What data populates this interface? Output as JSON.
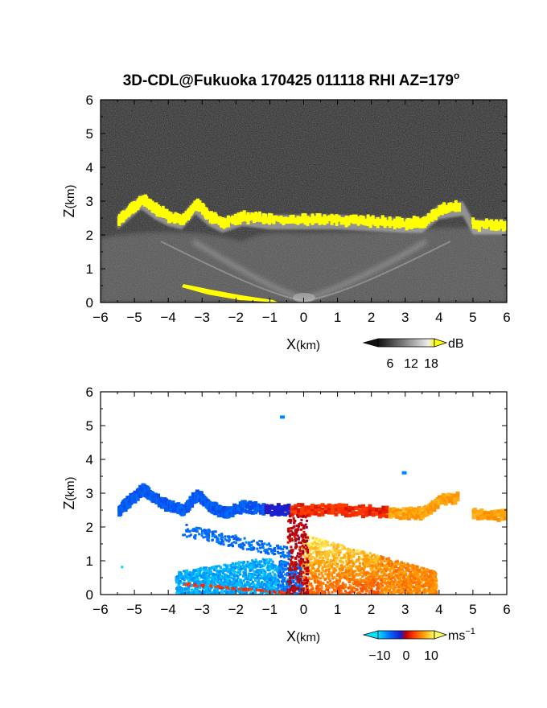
{
  "figure": {
    "title": "3D-CDL@Fukuoka 170425 011118 RHI AZ=179",
    "title_sup": "o"
  },
  "chart_data": [
    {
      "type": "heatmap",
      "name": "backscatter",
      "xlabel_main": "X",
      "xlabel_unit": "(km)",
      "ylabel_main": "Z",
      "ylabel_unit": "(km)",
      "xlim": [
        -6,
        6
      ],
      "ylim": [
        0,
        6
      ],
      "xticks": [
        "−6",
        "−5",
        "−4",
        "−3",
        "−2",
        "−1",
        "0",
        "1",
        "2",
        "3",
        "4",
        "5",
        "6"
      ],
      "yticks": [
        "0",
        "1",
        "2",
        "3",
        "4",
        "5",
        "6"
      ],
      "colorbar": {
        "unit": "dB",
        "ticks": [
          "6",
          "12",
          "18"
        ],
        "range": [
          0,
          20
        ]
      },
      "features": {
        "cloud_base_layer": [
          [
            -5.5,
            2.45
          ],
          [
            -5.2,
            2.7
          ],
          [
            -4.8,
            3.05
          ],
          [
            -4.4,
            2.75
          ],
          [
            -4.0,
            2.55
          ],
          [
            -3.6,
            2.45
          ],
          [
            -3.2,
            2.9
          ],
          [
            -2.8,
            2.55
          ],
          [
            -2.4,
            2.35
          ],
          [
            -1.8,
            2.55
          ],
          [
            -1.0,
            2.45
          ],
          [
            0.0,
            2.45
          ],
          [
            1.0,
            2.45
          ],
          [
            2.0,
            2.4
          ],
          [
            3.0,
            2.35
          ],
          [
            3.5,
            2.35
          ],
          [
            4.0,
            2.75
          ],
          [
            4.7,
            2.85
          ],
          [
            5.0,
            2.3
          ],
          [
            6.0,
            2.3
          ]
        ],
        "ground_clutter": [
          [
            -3.6,
            0.5
          ],
          [
            -2.0,
            0.2
          ],
          [
            -1.0,
            0.03
          ]
        ]
      }
    },
    {
      "type": "heatmap",
      "name": "doppler_velocity",
      "xlabel_main": "X",
      "xlabel_unit": "(km)",
      "ylabel_main": "Z",
      "ylabel_unit": "(km)",
      "xlim": [
        -6,
        6
      ],
      "ylim": [
        0,
        6
      ],
      "xticks": [
        "−6",
        "−5",
        "−4",
        "−3",
        "−2",
        "−1",
        "0",
        "1",
        "2",
        "3",
        "4",
        "5",
        "6"
      ],
      "yticks": [
        "0",
        "1",
        "2",
        "3",
        "4",
        "5",
        "6"
      ],
      "colorbar": {
        "unit": "ms",
        "unit_sup": "−1",
        "ticks": [
          "−10",
          "0",
          "10"
        ],
        "range": [
          -15,
          15
        ]
      },
      "features": {
        "negative_region": {
          "x": [
            -5.6,
            -0.1
          ],
          "z": [
            0.0,
            3.2
          ]
        },
        "positive_region": {
          "x": [
            -0.1,
            6.0
          ],
          "z": [
            0.0,
            2.8
          ]
        },
        "isolated_echoes": [
          [
            -0.7,
            5.3
          ],
          [
            2.9,
            3.65
          ]
        ]
      }
    }
  ]
}
